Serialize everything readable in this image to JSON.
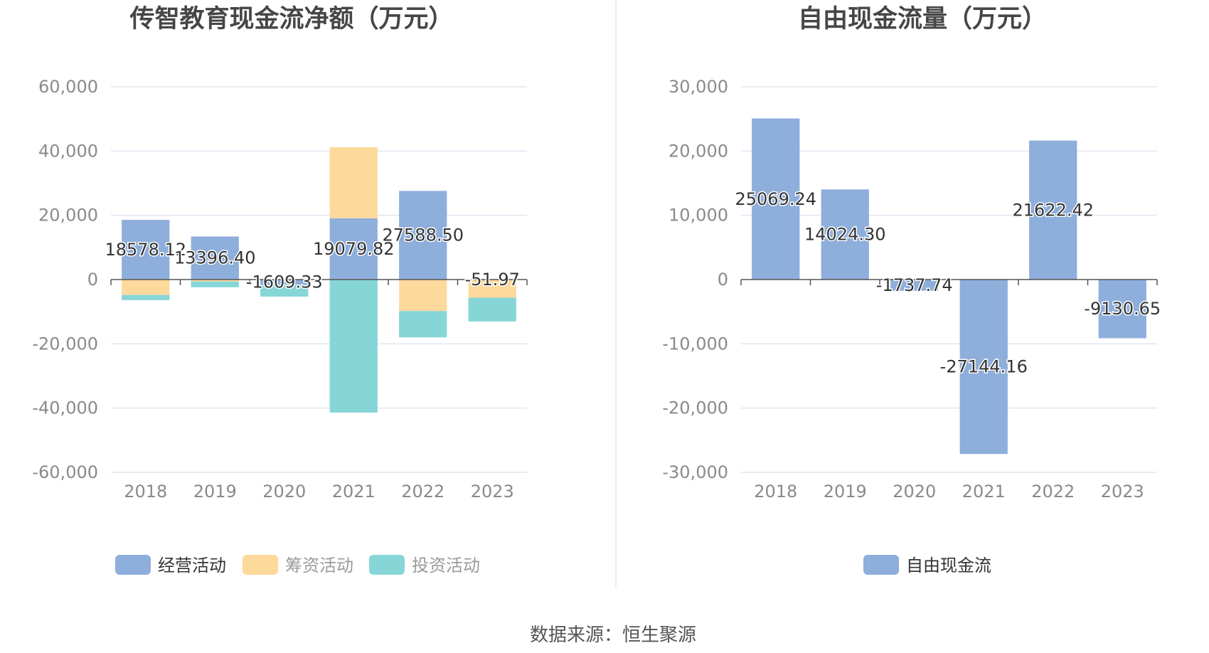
{
  "source_text": "数据来源：恒生聚源",
  "chart_data": [
    {
      "type": "bar",
      "stacked": true,
      "title": "传智教育现金流净额（万元）",
      "categories": [
        "2018",
        "2019",
        "2020",
        "2021",
        "2022",
        "2023"
      ],
      "ylim": [
        -60000,
        60000
      ],
      "yticks": [
        60000,
        40000,
        20000,
        0,
        -20000,
        -40000,
        -60000
      ],
      "ytick_labels": [
        "60,000",
        "40,000",
        "20,000",
        "0",
        "-20,000",
        "-40,000",
        "-60,000"
      ],
      "grid": true,
      "legend_position": "bottom",
      "series": [
        {
          "name": "经营活动",
          "color": "#8eaedb",
          "values": [
            18578.12,
            13396.4,
            -1609.33,
            19079.82,
            27588.5,
            -51.97
          ],
          "labels": [
            "18578.12",
            "13396.40",
            "-1609.33",
            "19079.82",
            "27588.50",
            "-51.97"
          ]
        },
        {
          "name": "筹资活动",
          "color": "#fed99c",
          "values": [
            -4800,
            -600,
            0,
            22100,
            -9800,
            -5600
          ]
        },
        {
          "name": "投资活动",
          "color": "#86d6d8",
          "values": [
            -1600,
            -1800,
            -3700,
            -41400,
            -8200,
            -7400
          ]
        }
      ]
    },
    {
      "type": "bar",
      "title": "自由现金流量（万元）",
      "categories": [
        "2018",
        "2019",
        "2020",
        "2021",
        "2022",
        "2023"
      ],
      "ylim": [
        -30000,
        30000
      ],
      "yticks": [
        30000,
        20000,
        10000,
        0,
        -10000,
        -20000,
        -30000
      ],
      "ytick_labels": [
        "30,000",
        "20,000",
        "10,000",
        "0",
        "-10,000",
        "-20,000",
        "-30,000"
      ],
      "grid": true,
      "legend_position": "bottom",
      "series": [
        {
          "name": "自由现金流",
          "color": "#8eaedb",
          "values": [
            25069.24,
            14024.3,
            -1737.74,
            -27144.16,
            21622.42,
            -9130.65
          ],
          "labels": [
            "25069.24",
            "14024.30",
            "-1737.74",
            "-27144.16",
            "21622.42",
            "-9130.65"
          ]
        }
      ]
    }
  ]
}
